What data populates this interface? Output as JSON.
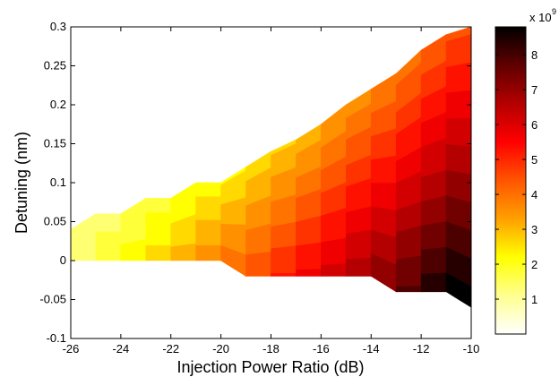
{
  "chart_data": {
    "type": "heatmap",
    "title": "",
    "xlabel": "Injection Power Ratio (dB)",
    "ylabel": "Detuning (nm)",
    "xlim": [
      -26,
      -10
    ],
    "ylim": [
      -0.1,
      0.3
    ],
    "x_ticks": [
      "-26",
      "-24",
      "-22",
      "-20",
      "-18",
      "-16",
      "-14",
      "-12",
      "-10"
    ],
    "y_ticks": [
      "-0.1",
      "-0.05",
      "0",
      "0.05",
      "0.1",
      "0.15",
      "0.2",
      "0.25",
      "0.3"
    ],
    "colorbar": {
      "colormap": "hot (reversed)",
      "range": [
        0,
        8.8
      ],
      "ticks": [
        "1",
        "2",
        "3",
        "4",
        "5",
        "6",
        "7",
        "8"
      ],
      "scale_label": "x 10",
      "scale_exponent": "9",
      "levels": 20
    },
    "locking_region": {
      "x": [
        -26,
        -25,
        -24,
        -23,
        -22,
        -21,
        -20,
        -19,
        -18,
        -17,
        -16,
        -15,
        -14,
        -13,
        -12,
        -11,
        -10
      ],
      "upper_detuning": [
        0.04,
        0.06,
        0.06,
        0.08,
        0.08,
        0.1,
        0.1,
        0.12,
        0.14,
        0.155,
        0.175,
        0.2,
        0.22,
        0.24,
        0.27,
        0.29,
        0.3
      ],
      "lower_detuning": [
        0,
        0,
        0,
        0,
        0,
        0,
        0,
        -0.02,
        -0.02,
        -0.02,
        -0.02,
        -0.02,
        -0.02,
        -0.04,
        -0.04,
        -0.04,
        -0.06
      ]
    },
    "gradient_note": ""
  }
}
